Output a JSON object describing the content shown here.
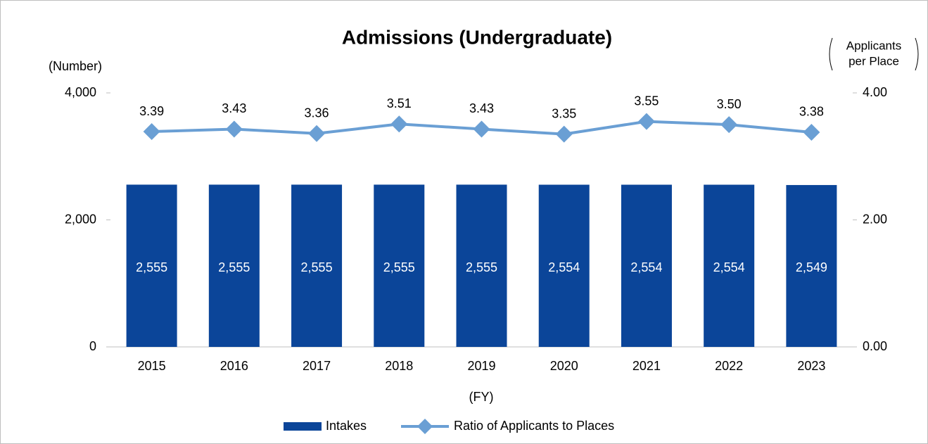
{
  "chart_data": {
    "type": "bar_line",
    "title": "Admissions (Undergraduate)",
    "ylabel": "(Number)",
    "y2label": [
      "Applicants",
      "per Place"
    ],
    "xlabel": "(FY)",
    "categories": [
      "2015",
      "2016",
      "2017",
      "2018",
      "2019",
      "2020",
      "2021",
      "2022",
      "2023"
    ],
    "series": [
      {
        "name": "Intakes",
        "type": "bar",
        "color": "#0b4599",
        "values": [
          2555,
          2555,
          2555,
          2555,
          2555,
          2554,
          2554,
          2554,
          2549
        ],
        "value_labels": [
          "2,555",
          "2,555",
          "2,555",
          "2,555",
          "2,555",
          "2,554",
          "2,554",
          "2,554",
          "2,549"
        ]
      },
      {
        "name": "Ratio of Applicants to Places",
        "type": "line",
        "axis": "y2",
        "color": "#6a9fd4",
        "values": [
          3.39,
          3.43,
          3.36,
          3.51,
          3.43,
          3.35,
          3.55,
          3.5,
          3.38
        ],
        "value_labels": [
          "3.39",
          "3.43",
          "3.36",
          "3.51",
          "3.43",
          "3.35",
          "3.55",
          "3.50",
          "3.38"
        ]
      }
    ],
    "ylim": [
      0,
      4000
    ],
    "yticks": [
      0,
      {
        "value": 2000,
        "label": "2,000"
      },
      {
        "value": 4000,
        "label": "4,000"
      }
    ],
    "y2lim": [
      0,
      4
    ],
    "y2ticks": [
      {
        "value": 0,
        "label": "0.00"
      },
      {
        "value": 2,
        "label": "2.00"
      },
      {
        "value": 4,
        "label": "4.00"
      }
    ],
    "legend": "bottom"
  }
}
